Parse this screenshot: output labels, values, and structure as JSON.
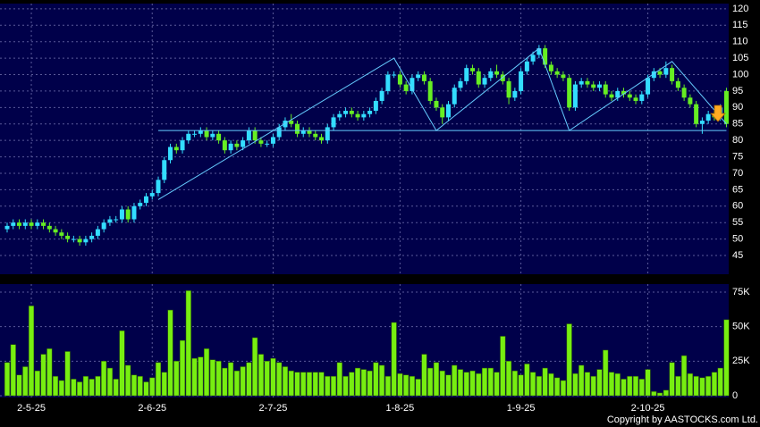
{
  "chart_data": [
    {
      "type": "candlestick",
      "up_color": "#33ddff",
      "down_color": "#66ee22",
      "trend_color": "#66ccff",
      "open": [
        53,
        54,
        55,
        54,
        55,
        54,
        55,
        54,
        53,
        52,
        51,
        50,
        50,
        49,
        50,
        51,
        53,
        55,
        56,
        56,
        59,
        56,
        60,
        61,
        63,
        64,
        68,
        74,
        78,
        77,
        80,
        82,
        82,
        83,
        81,
        82,
        80,
        77,
        79,
        78,
        80,
        83,
        80,
        79,
        79,
        81,
        84,
        86,
        85,
        82,
        83,
        82,
        81,
        80,
        84,
        87,
        88,
        89,
        88,
        87,
        88,
        89,
        92,
        95,
        100,
        100,
        97,
        95,
        99,
        100,
        98,
        92,
        90,
        87,
        91,
        96,
        98,
        102,
        101,
        97,
        99,
        101,
        100,
        98,
        93,
        95,
        101,
        104,
        106,
        108,
        103,
        101,
        100,
        99,
        90,
        97,
        98,
        97,
        96,
        97,
        94,
        93,
        95,
        94,
        93,
        92,
        94,
        99,
        101,
        100,
        102,
        98,
        96,
        93,
        91,
        85,
        86,
        88,
        87,
        95
      ],
      "high": [
        55,
        56,
        56,
        56,
        56,
        56,
        56,
        55,
        54,
        53,
        52,
        51,
        51,
        51,
        52,
        54,
        56,
        57,
        57,
        60,
        60,
        61,
        62,
        64,
        65,
        69,
        75,
        79,
        79,
        81,
        83,
        83,
        84,
        84,
        83,
        83,
        81,
        80,
        80,
        81,
        84,
        84,
        81,
        80,
        82,
        85,
        87,
        88,
        86,
        84,
        84,
        83,
        82,
        85,
        88,
        89,
        90,
        90,
        89,
        89,
        90,
        93,
        96,
        101,
        101,
        101,
        98,
        100,
        101,
        101,
        99,
        93,
        91,
        92,
        97,
        99,
        103,
        103,
        102,
        100,
        102,
        103,
        101,
        99,
        96,
        102,
        105,
        107,
        109,
        109,
        104,
        102,
        101,
        100,
        98,
        99,
        99,
        98,
        98,
        98,
        95,
        96,
        96,
        95,
        94,
        95,
        100,
        102,
        102,
        104,
        103,
        99,
        97,
        94,
        92,
        87,
        89,
        89,
        91,
        96
      ],
      "low": [
        52,
        53,
        53,
        53,
        53,
        53,
        53,
        52,
        51,
        50,
        49,
        49,
        48,
        48,
        49,
        50,
        52,
        54,
        55,
        55,
        55,
        55,
        59,
        60,
        62,
        63,
        67,
        73,
        76,
        76,
        79,
        81,
        81,
        80,
        80,
        79,
        76,
        76,
        77,
        77,
        79,
        79,
        78,
        78,
        78,
        80,
        83,
        84,
        81,
        81,
        81,
        80,
        79,
        79,
        83,
        86,
        87,
        87,
        86,
        86,
        87,
        88,
        91,
        94,
        99,
        96,
        94,
        94,
        98,
        97,
        91,
        89,
        85,
        86,
        90,
        95,
        97,
        100,
        96,
        96,
        98,
        99,
        97,
        91,
        92,
        94,
        100,
        103,
        105,
        102,
        100,
        99,
        98,
        89,
        89,
        96,
        96,
        95,
        95,
        93,
        92,
        92,
        93,
        92,
        91,
        91,
        93,
        98,
        99,
        99,
        97,
        95,
        92,
        90,
        84,
        82,
        85,
        86,
        86,
        84
      ],
      "close": [
        54,
        55,
        54,
        55,
        54,
        55,
        54,
        53,
        52,
        51,
        50,
        50,
        49,
        50,
        51,
        53,
        55,
        56,
        56,
        59,
        56,
        60,
        61,
        63,
        64,
        68,
        74,
        78,
        77,
        80,
        82,
        82,
        83,
        81,
        82,
        80,
        77,
        79,
        78,
        80,
        83,
        80,
        79,
        79,
        81,
        84,
        86,
        85,
        82,
        83,
        82,
        81,
        80,
        84,
        87,
        88,
        89,
        88,
        87,
        88,
        89,
        92,
        95,
        100,
        100,
        97,
        95,
        99,
        100,
        98,
        92,
        90,
        87,
        91,
        96,
        98,
        102,
        101,
        97,
        99,
        101,
        100,
        98,
        93,
        95,
        101,
        104,
        106,
        108,
        103,
        101,
        100,
        99,
        90,
        97,
        98,
        97,
        96,
        97,
        94,
        93,
        95,
        94,
        93,
        92,
        94,
        99,
        101,
        100,
        102,
        98,
        96,
        93,
        91,
        85,
        86,
        88,
        87,
        90,
        85
      ],
      "trendlines": [
        {
          "x": [
            25,
            64,
            71,
            88,
            93,
            110,
            119
          ],
          "y": [
            62,
            105,
            83,
            108,
            83,
            104,
            85
          ]
        },
        {
          "x": [
            25,
            119
          ],
          "y": [
            83,
            83
          ]
        }
      ],
      "ylim": [
        39.3,
        121.6
      ],
      "yticks": [
        45,
        50,
        55,
        60,
        65,
        70,
        75,
        80,
        85,
        90,
        95,
        100,
        105,
        110,
        115,
        120
      ],
      "grid": true
    },
    {
      "type": "bar",
      "color": "#77ee11",
      "categories": [
        null,
        null,
        null,
        null,
        "2-5-25",
        null,
        null,
        null,
        null,
        null,
        null,
        null,
        null,
        null,
        null,
        null,
        null,
        null,
        null,
        null,
        null,
        null,
        null,
        null,
        "2-6-25",
        null,
        null,
        null,
        null,
        null,
        null,
        null,
        null,
        null,
        null,
        null,
        null,
        null,
        null,
        null,
        null,
        null,
        null,
        null,
        "2-7-25",
        null,
        null,
        null,
        null,
        null,
        null,
        null,
        null,
        null,
        null,
        null,
        null,
        null,
        null,
        null,
        null,
        null,
        null,
        null,
        null,
        "1-8-25",
        null,
        null,
        null,
        null,
        null,
        null,
        null,
        null,
        null,
        null,
        null,
        null,
        null,
        null,
        null,
        null,
        null,
        null,
        null,
        "1-9-25",
        null,
        null,
        null,
        null,
        null,
        null,
        null,
        null,
        null,
        null,
        null,
        null,
        null,
        null,
        null,
        null,
        null,
        null,
        null,
        null,
        "2-10-25",
        null,
        null,
        null,
        null,
        null,
        null,
        null,
        null,
        null,
        null,
        null,
        null,
        null
      ],
      "values": [
        24000,
        37000,
        15000,
        21000,
        65000,
        18000,
        30000,
        34000,
        14000,
        11000,
        32000,
        12000,
        10000,
        14000,
        12000,
        14000,
        25000,
        20000,
        12000,
        47000,
        22000,
        15000,
        14000,
        10000,
        13000,
        24000,
        17000,
        62000,
        25000,
        40000,
        76000,
        27000,
        28000,
        34000,
        26000,
        25000,
        20000,
        24000,
        18000,
        21000,
        24000,
        42000,
        30000,
        25000,
        27000,
        24000,
        21000,
        18000,
        17000,
        17000,
        17000,
        17000,
        17000,
        14000,
        14000,
        24000,
        14000,
        17000,
        20000,
        19000,
        18000,
        24000,
        22000,
        14000,
        53000,
        16000,
        15000,
        14000,
        12000,
        30000,
        20000,
        24000,
        18000,
        15000,
        22000,
        19000,
        17000,
        18000,
        16000,
        20000,
        20000,
        17000,
        43000,
        25000,
        18000,
        15000,
        23000,
        17000,
        14000,
        20000,
        16000,
        13000,
        11000,
        52000,
        16000,
        22000,
        17000,
        14000,
        19000,
        33000,
        17000,
        16000,
        12000,
        14000,
        14000,
        12000,
        19000,
        3000,
        2000,
        4000,
        24000,
        14000,
        29000,
        16000,
        14000,
        13000,
        14000,
        17000,
        20000,
        55000
      ],
      "ylim": [
        -1300,
        80800
      ],
      "yticks": [
        0,
        {
          "value": 25000,
          "label": "25K"
        },
        {
          "value": 50000,
          "label": "50K"
        },
        {
          "value": 75000,
          "label": "75K"
        }
      ],
      "grid": true
    }
  ],
  "credit": "Copyright by AASTOCKS.com Ltd."
}
